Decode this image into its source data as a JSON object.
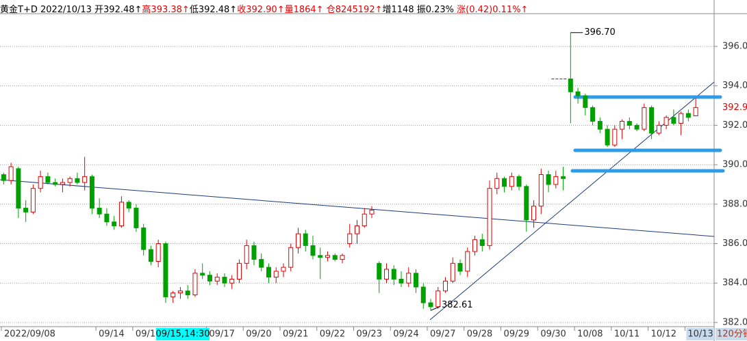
{
  "chart_data": {
    "type": "candlestick",
    "header": [
      {
        "text": "黄金T+D 2022/10/13 开392.48↑",
        "color": "#000000"
      },
      {
        "text": "高393.38↑",
        "color": "#e00000"
      },
      {
        "text": "低392.48↑",
        "color": "#000000"
      },
      {
        "text": "收392.90↑",
        "color": "#e00000"
      },
      {
        "text": "量1864↑ ",
        "color": "#e00000"
      },
      {
        "text": "仓8245192↑",
        "color": "#e00000"
      },
      {
        "text": "增1148 振0.23% ",
        "color": "#000000"
      },
      {
        "text": "涨(0.42)0.11%↑",
        "color": "#e00000"
      }
    ],
    "up_color": "#e00000",
    "down_color": "#00a000",
    "ylim": [
      381.79,
      397.66
    ],
    "yticks": [
      {
        "value": 382,
        "label": "382.00"
      },
      {
        "value": 384,
        "label": "384.00"
      },
      {
        "value": 386,
        "label": "386.00"
      },
      {
        "value": 388,
        "label": "388.00"
      },
      {
        "value": 390,
        "label": "390.00"
      },
      {
        "value": 392,
        "label": "392.00"
      },
      {
        "value": 394,
        "label": "394.00"
      },
      {
        "value": 396,
        "label": "396.00"
      }
    ],
    "grid": true,
    "categories": [
      "2022/09/08",
      null,
      null,
      null,
      null,
      null,
      null,
      null,
      null,
      null,
      null,
      null,
      null,
      "09/14",
      null,
      null,
      null,
      null,
      "09/15",
      null,
      null,
      null,
      null,
      null,
      null,
      null,
      null,
      null,
      "09/17",
      null,
      null,
      null,
      null,
      "09/20",
      null,
      null,
      null,
      null,
      "09/21",
      null,
      null,
      null,
      null,
      "09/22",
      null,
      null,
      null,
      null,
      "09/23",
      null,
      null,
      null,
      null,
      "09/24",
      null,
      null,
      null,
      null,
      "09/27",
      null,
      null,
      null,
      null,
      "09/28",
      null,
      null,
      null,
      null,
      "09/29",
      null,
      null,
      null,
      null,
      "09/30",
      null,
      null,
      null,
      null,
      "10/08",
      null,
      null,
      null,
      null,
      "10/11",
      null,
      null,
      null,
      null,
      "10/12",
      null,
      null,
      null,
      null,
      "10/13",
      null
    ],
    "ohlc": [
      [
        389.5,
        389.6,
        389.0,
        389.2
      ],
      [
        389.2,
        390.1,
        389.0,
        389.9
      ],
      [
        389.8,
        389.9,
        387.3,
        387.8
      ],
      [
        387.8,
        388.2,
        387.1,
        387.6
      ],
      [
        387.6,
        389.0,
        387.5,
        388.8
      ],
      [
        388.8,
        389.7,
        388.6,
        389.4
      ],
      [
        389.4,
        389.6,
        389.0,
        389.1
      ],
      [
        389.1,
        389.3,
        388.9,
        389.0
      ],
      [
        389.0,
        389.3,
        388.6,
        389.1
      ],
      [
        389.1,
        389.4,
        388.9,
        389.3
      ],
      [
        389.3,
        389.6,
        389.0,
        389.1
      ],
      [
        389.1,
        390.4,
        388.7,
        389.4
      ],
      [
        389.4,
        389.5,
        387.5,
        387.8
      ],
      [
        387.8,
        388.3,
        387.3,
        387.5
      ],
      [
        387.5,
        387.8,
        386.9,
        387.1
      ],
      [
        387.1,
        387.4,
        386.7,
        386.9
      ],
      [
        386.9,
        388.4,
        386.8,
        388.1
      ],
      [
        388.1,
        388.2,
        387.6,
        387.8
      ],
      [
        387.8,
        388.0,
        386.6,
        386.8
      ],
      [
        386.8,
        387.0,
        385.4,
        385.7
      ],
      [
        385.7,
        385.9,
        384.9,
        385.1
      ],
      [
        385.1,
        386.2,
        384.8,
        386.0
      ],
      [
        386.0,
        386.1,
        383.0,
        383.3
      ],
      [
        383.3,
        383.6,
        383.0,
        383.5
      ],
      [
        383.5,
        383.8,
        383.2,
        383.6
      ],
      [
        383.6,
        383.9,
        383.2,
        383.4
      ],
      [
        383.4,
        384.7,
        383.3,
        384.5
      ],
      [
        384.5,
        385.0,
        384.2,
        384.4
      ],
      [
        384.4,
        384.6,
        383.9,
        384.1
      ],
      [
        384.1,
        384.5,
        383.9,
        384.3
      ],
      [
        384.3,
        384.5,
        383.8,
        384.0
      ],
      [
        384.0,
        384.4,
        383.7,
        384.2
      ],
      [
        384.2,
        385.2,
        384.0,
        385.0
      ],
      [
        385.0,
        386.2,
        384.7,
        385.9
      ],
      [
        385.9,
        386.1,
        384.9,
        385.2
      ],
      [
        385.2,
        385.5,
        384.6,
        384.8
      ],
      [
        384.8,
        385.0,
        384.0,
        384.3
      ],
      [
        384.3,
        384.8,
        384.0,
        384.6
      ],
      [
        384.6,
        385.0,
        384.3,
        384.8
      ],
      [
        384.8,
        386.0,
        384.6,
        385.8
      ],
      [
        385.8,
        386.8,
        385.5,
        386.5
      ],
      [
        386.5,
        386.7,
        385.6,
        385.9
      ],
      [
        385.9,
        386.4,
        385.2,
        385.4
      ],
      [
        385.4,
        385.8,
        384.2,
        385.3
      ],
      [
        385.3,
        385.6,
        385.1,
        385.4
      ],
      [
        385.4,
        385.5,
        385.1,
        385.2
      ],
      [
        385.2,
        385.5,
        385.0,
        385.4
      ],
      [
        386.0,
        387.0,
        385.8,
        386.5
      ],
      [
        386.5,
        387.2,
        386.0,
        386.9
      ],
      [
        386.9,
        387.8,
        386.8,
        387.5
      ],
      [
        387.5,
        387.9,
        387.3,
        387.7
      ],
      [
        385.0,
        385.1,
        383.5,
        384.2
      ],
      [
        384.2,
        385.0,
        384.0,
        384.7
      ],
      [
        384.7,
        384.9,
        383.9,
        384.2
      ],
      [
        384.2,
        384.6,
        383.8,
        384.0
      ],
      [
        384.0,
        384.8,
        383.8,
        384.5
      ],
      [
        384.5,
        384.7,
        383.5,
        383.8
      ],
      [
        383.8,
        384.0,
        382.7,
        383.0
      ],
      [
        383.0,
        383.2,
        382.61,
        382.8
      ],
      [
        382.8,
        383.8,
        382.7,
        383.6
      ],
      [
        383.6,
        384.3,
        383.5,
        384.1
      ],
      [
        384.1,
        385.3,
        384.0,
        385.0
      ],
      [
        385.0,
        385.2,
        384.4,
        384.6
      ],
      [
        384.6,
        385.8,
        384.3,
        385.6
      ],
      [
        385.6,
        386.4,
        385.4,
        386.2
      ],
      [
        386.2,
        386.5,
        385.6,
        385.9
      ],
      [
        385.9,
        389.2,
        385.7,
        388.8
      ],
      [
        388.8,
        389.6,
        388.5,
        389.3
      ],
      [
        389.3,
        389.4,
        388.6,
        388.9
      ],
      [
        388.9,
        389.6,
        388.7,
        389.4
      ],
      [
        389.4,
        389.5,
        388.7,
        388.9
      ],
      [
        388.9,
        389.0,
        386.6,
        387.2
      ],
      [
        387.2,
        388.2,
        386.8,
        387.9
      ],
      [
        387.9,
        389.8,
        387.5,
        389.5
      ],
      [
        389.5,
        389.7,
        388.6,
        389.0
      ],
      [
        389.0,
        389.7,
        388.8,
        389.4
      ],
      [
        389.4,
        389.9,
        388.7,
        389.3
      ],
      [
        394.35,
        396.7,
        392.1,
        393.7
      ],
      [
        393.7,
        393.9,
        393.1,
        393.5
      ],
      [
        393.5,
        393.6,
        392.5,
        392.9
      ],
      [
        392.9,
        393.0,
        392.0,
        392.2
      ],
      [
        392.2,
        392.4,
        391.6,
        391.8
      ],
      [
        391.8,
        392.0,
        390.9,
        391.0
      ],
      [
        391.0,
        392.0,
        390.9,
        391.8
      ],
      [
        391.8,
        392.3,
        391.3,
        392.2
      ],
      [
        392.2,
        392.4,
        391.8,
        392.0
      ],
      [
        392.0,
        392.1,
        391.7,
        391.8
      ],
      [
        391.8,
        393.1,
        391.7,
        392.9
      ],
      [
        392.9,
        393.0,
        391.3,
        391.6
      ],
      [
        391.6,
        392.2,
        391.5,
        392.0
      ],
      [
        392.0,
        392.5,
        391.8,
        392.4
      ],
      [
        392.4,
        392.8,
        392.0,
        392.1
      ],
      [
        392.1,
        392.7,
        391.5,
        392.6
      ],
      [
        392.6,
        392.8,
        392.2,
        392.4
      ],
      [
        392.48,
        393.38,
        392.48,
        392.9
      ]
    ],
    "max_label": "396.70",
    "min_label": "382.61",
    "last_price_label": "392.90",
    "cursor_label": "09/15,14:30",
    "period_label": "120分钟"
  }
}
